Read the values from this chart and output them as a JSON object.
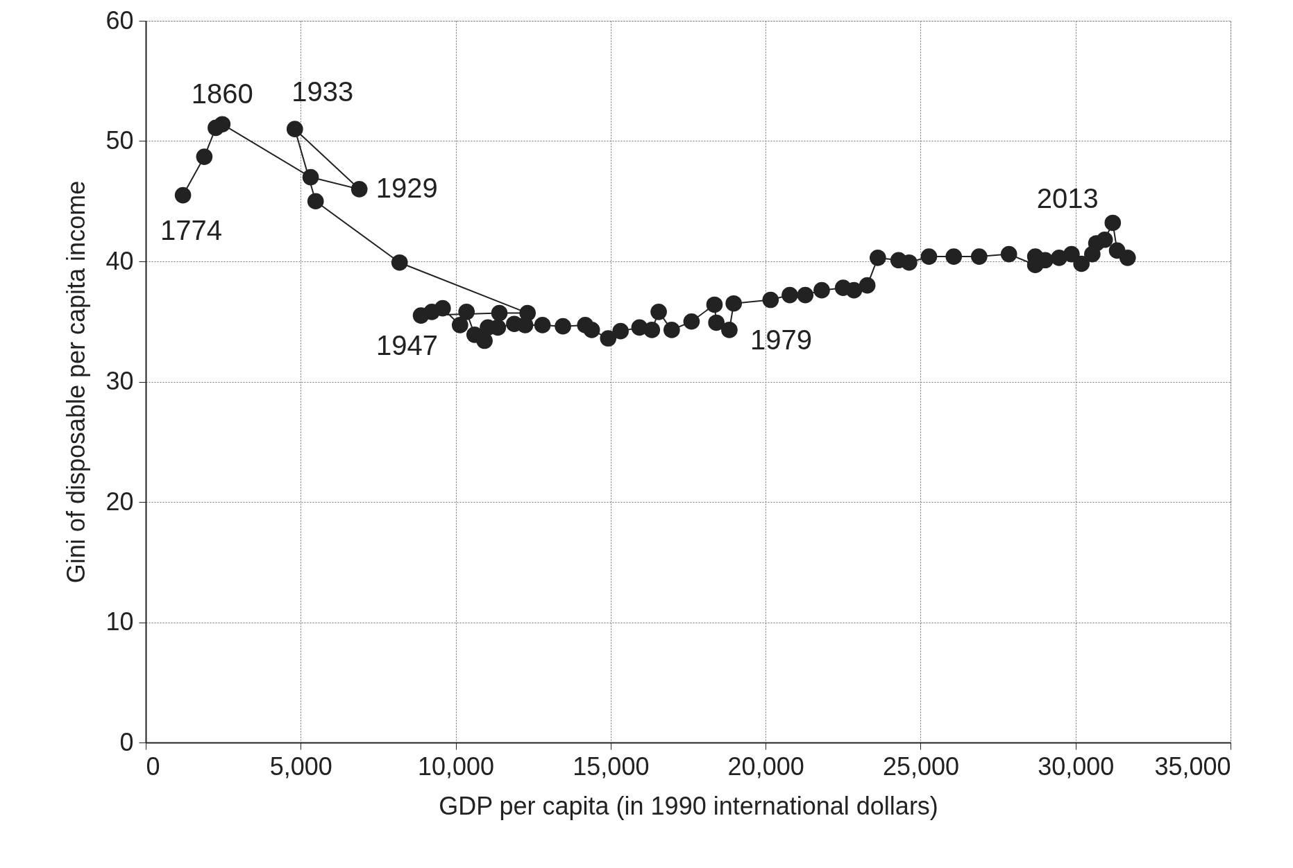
{
  "chart_data": {
    "type": "line",
    "xlabel": "GDP per capita (in 1990 international dollars)",
    "ylabel": "Gini of disposable per capita income",
    "x": [
      1200,
      1890,
      2260,
      2470,
      5320,
      6890,
      4810,
      5480,
      8190,
      12320,
      11410,
      8880,
      9230,
      9580,
      10140,
      10350,
      10610,
      10930,
      11040,
      11360,
      11890,
      12240,
      12800,
      13460,
      14180,
      14390,
      14920,
      15320,
      15930,
      16330,
      16550,
      16970,
      17610,
      18350,
      18410,
      18830,
      18970,
      20160,
      20780,
      21280,
      21810,
      22500,
      22850,
      23280,
      23620,
      24290,
      24630,
      25270,
      26070,
      26890,
      27850,
      28700,
      28700,
      29020,
      29470,
      29870,
      30190,
      30540,
      30670,
      30940,
      31200,
      31340,
      31680
    ],
    "values": [
      45.5,
      48.7,
      51.1,
      51.4,
      47.0,
      46.0,
      51.0,
      45.0,
      39.9,
      35.7,
      35.7,
      35.5,
      35.8,
      36.1,
      34.7,
      35.8,
      33.9,
      33.4,
      34.5,
      34.5,
      34.8,
      34.7,
      34.7,
      34.6,
      34.7,
      34.3,
      33.6,
      34.2,
      34.5,
      34.3,
      35.8,
      34.3,
      35.0,
      36.4,
      34.9,
      34.3,
      36.5,
      36.8,
      37.2,
      37.2,
      37.6,
      37.8,
      37.6,
      38.0,
      40.3,
      40.1,
      39.9,
      40.4,
      40.4,
      40.4,
      40.6,
      39.7,
      40.4,
      40.1,
      40.3,
      40.6,
      39.8,
      40.6,
      41.5,
      41.8,
      43.2,
      40.9,
      40.3
    ],
    "color": "#222222",
    "marker": "circle",
    "line_style": "solid",
    "grid": true,
    "xlim": [
      0,
      35000
    ],
    "xticks": [
      0,
      {
        "value": 5000,
        "label": "5,000"
      },
      {
        "value": 10000,
        "label": "10,000"
      },
      {
        "value": 15000,
        "label": "15,000"
      },
      {
        "value": 20000,
        "label": "20,000"
      },
      {
        "value": 25000,
        "label": "25,000"
      },
      {
        "value": 30000,
        "label": "30,000"
      },
      {
        "value": 35000,
        "label": "35,000"
      }
    ],
    "ylim": [
      0,
      60
    ],
    "yticks": [
      0,
      10,
      20,
      30,
      40,
      50,
      60
    ],
    "annotations": [
      {
        "text": "1774",
        "x": 1200,
        "y": 45.5
      },
      {
        "text": "1860",
        "x": 2470,
        "y": 51.4
      },
      {
        "text": "1933",
        "x": 4810,
        "y": 51.0
      },
      {
        "text": "1929",
        "x": 6890,
        "y": 46.0
      },
      {
        "text": "1947",
        "x": 8880,
        "y": 35.5
      },
      {
        "text": "1979",
        "x": 18830,
        "y": 34.3
      },
      {
        "text": "2013",
        "x": 31200,
        "y": 43.2
      }
    ]
  }
}
